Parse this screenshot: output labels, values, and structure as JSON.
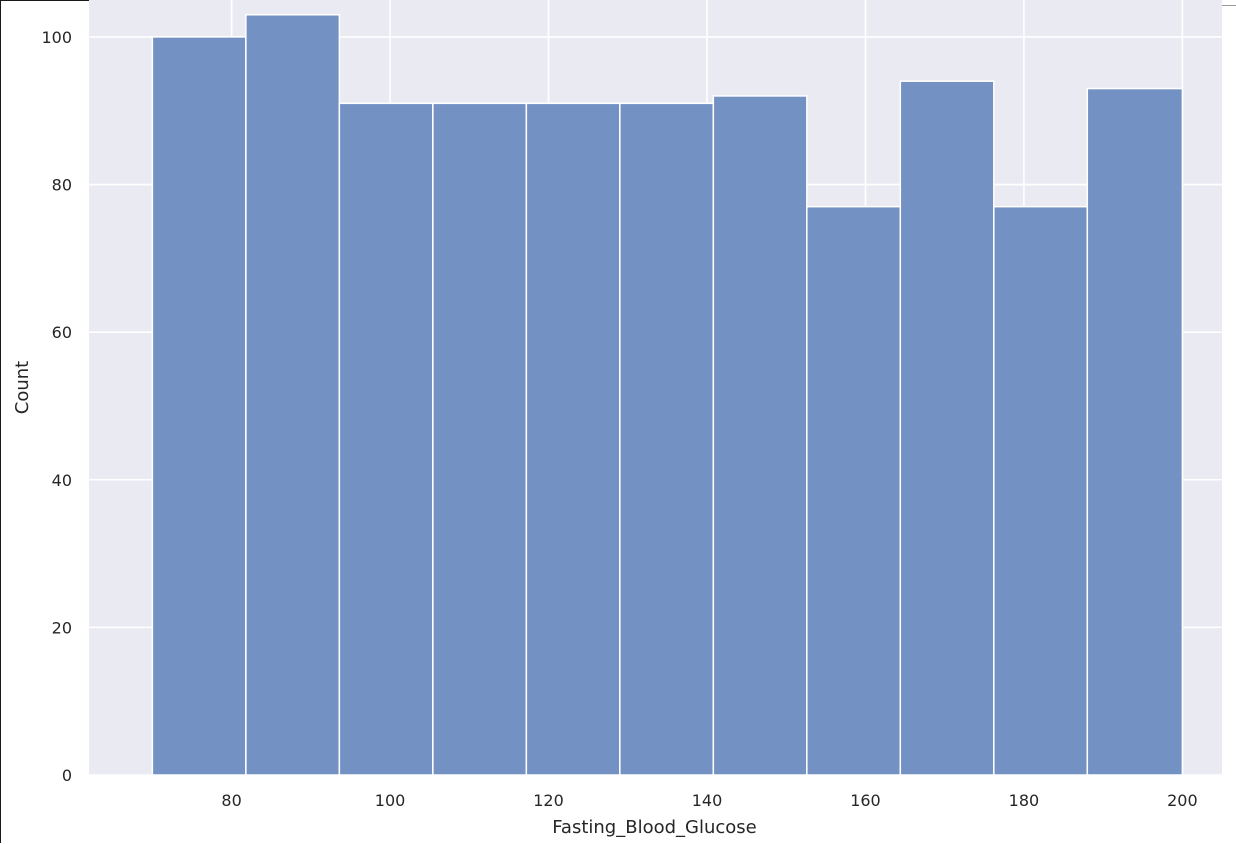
{
  "chart_data": {
    "type": "bar",
    "subtype": "histogram",
    "title": "",
    "xlabel": "Fasting_Blood_Glucose",
    "ylabel": "Count",
    "xlim": [
      62,
      205
    ],
    "ylim": [
      0,
      105
    ],
    "grid": true,
    "bin_edges": [
      70,
      81.8,
      93.6,
      105.4,
      117.2,
      129.0,
      140.8,
      152.6,
      164.4,
      176.2,
      188.0,
      200
    ],
    "values": [
      100,
      103,
      91,
      91,
      91,
      91,
      92,
      77,
      94,
      77,
      93
    ],
    "xticks": [
      80,
      100,
      120,
      140,
      160,
      180,
      200
    ],
    "yticks": [
      0,
      20,
      40,
      60,
      80,
      100
    ],
    "colors": {
      "background": "#eaeaf2",
      "grid": "#ffffff",
      "bar_fill": "#7391c3",
      "bar_edge": "#ffffff"
    }
  }
}
